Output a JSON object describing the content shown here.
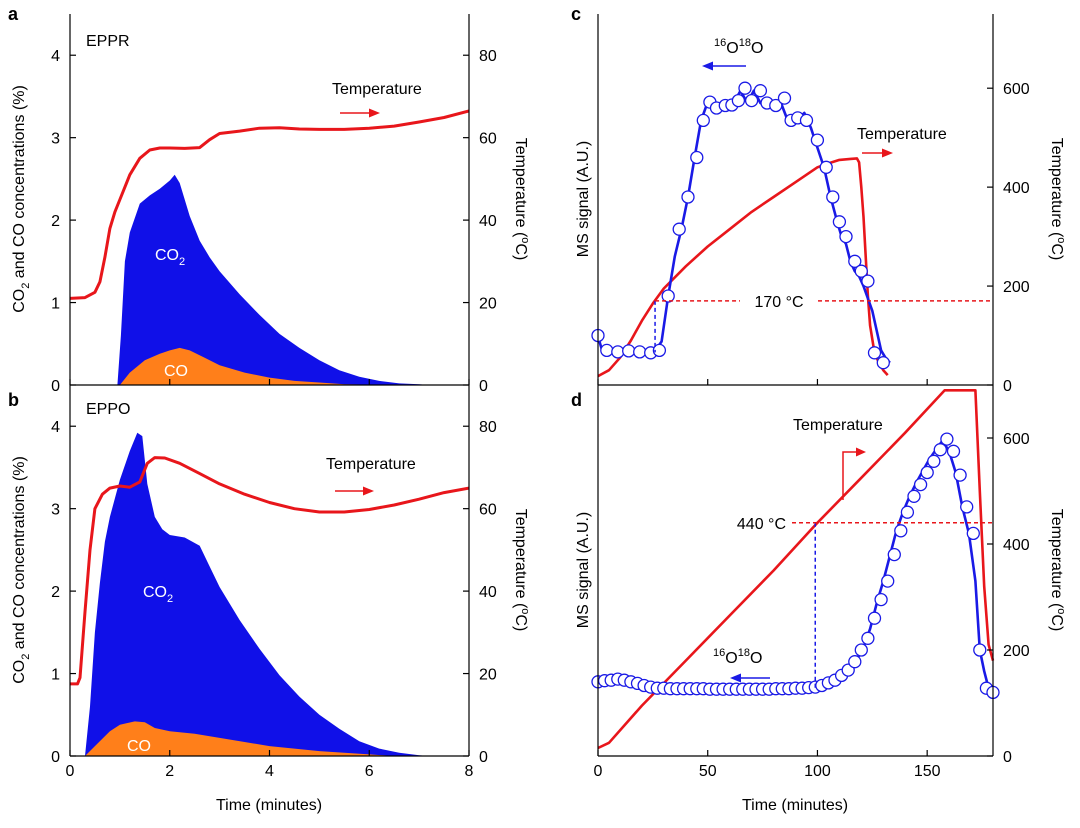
{
  "colors": {
    "co2_fill": "#1010e8",
    "co_fill": "#ff7f1a",
    "temperature": "#e8161b",
    "ms_signal": "#1a1ae6",
    "marker_fill": "#ffffff"
  },
  "chart_data": [
    {
      "panel": "a",
      "type": "area",
      "title": "",
      "sample_label": "EPPR",
      "xlabel": "",
      "ylabel": "CO2 and CO concentrations (%)",
      "ylabel_parts": {
        "pre": "CO",
        "sub": "2",
        "post": " and CO concentrations (%)"
      },
      "y2label": "Temperature (°C)",
      "y2label_parts": {
        "pre": "Temperature (",
        "sup": "o",
        "post": "C)"
      },
      "xlim": [
        0,
        8
      ],
      "ylim": [
        0,
        4.5
      ],
      "y2lim": [
        0,
        90
      ],
      "xticks": [
        0,
        2,
        4,
        6,
        8
      ],
      "yticks": [
        0,
        1,
        2,
        3,
        4
      ],
      "y2ticks": [
        0,
        20,
        40,
        60,
        80
      ],
      "series": [
        {
          "name": "CO2",
          "label_parts": {
            "pre": "CO",
            "sub": "2"
          },
          "axis": "left",
          "kind": "area",
          "x": [
            0.0,
            0.95,
            1.02,
            1.1,
            1.2,
            1.4,
            1.6,
            1.8,
            2.0,
            2.1,
            2.2,
            2.4,
            2.6,
            2.8,
            3.0,
            3.4,
            3.8,
            4.2,
            4.6,
            5.0,
            5.4,
            5.8,
            6.2,
            6.6,
            7.0,
            7.2,
            8.0
          ],
          "y": [
            0,
            0,
            0.6,
            1.5,
            1.85,
            2.2,
            2.3,
            2.38,
            2.48,
            2.55,
            2.45,
            2.05,
            1.75,
            1.55,
            1.38,
            1.1,
            0.85,
            0.62,
            0.45,
            0.3,
            0.18,
            0.1,
            0.05,
            0.02,
            0.01,
            0,
            0
          ]
        },
        {
          "name": "CO",
          "label_parts": {
            "pre": "CO",
            "sub": ""
          },
          "axis": "left",
          "kind": "area",
          "x": [
            0.0,
            1.0,
            1.2,
            1.5,
            1.8,
            2.0,
            2.2,
            2.4,
            2.7,
            3.0,
            3.5,
            4.0,
            4.5,
            5.0,
            5.5,
            6.0,
            6.5,
            8.0
          ],
          "y": [
            0,
            0,
            0.15,
            0.3,
            0.38,
            0.42,
            0.45,
            0.42,
            0.33,
            0.24,
            0.15,
            0.09,
            0.05,
            0.03,
            0.01,
            0.005,
            0,
            0
          ]
        },
        {
          "name": "Temperature",
          "axis": "right",
          "kind": "line",
          "x": [
            0.0,
            0.3,
            0.5,
            0.6,
            0.7,
            0.8,
            0.9,
            1.0,
            1.2,
            1.4,
            1.6,
            1.8,
            2.0,
            2.3,
            2.6,
            2.8,
            3.0,
            3.4,
            3.8,
            4.2,
            4.6,
            5.0,
            5.5,
            6.0,
            6.5,
            7.0,
            7.5,
            8.0
          ],
          "y": [
            21,
            21.2,
            22.5,
            25,
            31,
            38,
            42,
            45,
            51,
            55,
            57,
            57.5,
            57.5,
            57.4,
            57.6,
            59.5,
            61,
            61.6,
            62.3,
            62.4,
            62.1,
            62,
            62,
            62.3,
            62.8,
            63.8,
            64.9,
            66.5
          ]
        }
      ],
      "annotations": [
        {
          "text": "Temperature",
          "arrow": "right"
        }
      ]
    },
    {
      "panel": "b",
      "type": "area",
      "title": "",
      "sample_label": "EPPO",
      "xlabel": "Time (minutes)",
      "ylabel": "CO2 and CO concentrations (%)",
      "ylabel_parts": {
        "pre": "CO",
        "sub": "2",
        "post": " and CO concentrations (%)"
      },
      "y2label": "Temperature (°C)",
      "y2label_parts": {
        "pre": "Temperature (",
        "sup": "o",
        "post": "C)"
      },
      "xlim": [
        0,
        8
      ],
      "ylim": [
        0,
        4.5
      ],
      "y2lim": [
        0,
        90
      ],
      "xticks": [
        0,
        2,
        4,
        6,
        8
      ],
      "xticklabels": [
        "0",
        "2",
        "4",
        "6",
        "8"
      ],
      "yticks": [
        0,
        1,
        2,
        3,
        4
      ],
      "y2ticks": [
        0,
        20,
        40,
        60,
        80
      ],
      "series": [
        {
          "name": "CO2",
          "label_parts": {
            "pre": "CO",
            "sub": "2"
          },
          "axis": "left",
          "kind": "area",
          "x": [
            0.0,
            0.3,
            0.4,
            0.5,
            0.6,
            0.7,
            0.8,
            1.0,
            1.2,
            1.35,
            1.45,
            1.55,
            1.7,
            1.85,
            2.0,
            2.3,
            2.6,
            2.8,
            3.0,
            3.4,
            3.8,
            4.2,
            4.6,
            5.0,
            5.4,
            5.8,
            6.2,
            6.6,
            7.0,
            7.2,
            8.0
          ],
          "y": [
            0,
            0,
            0.6,
            1.5,
            2.1,
            2.6,
            2.9,
            3.35,
            3.7,
            3.92,
            3.88,
            3.3,
            2.9,
            2.75,
            2.68,
            2.65,
            2.55,
            2.3,
            2.05,
            1.65,
            1.3,
            0.98,
            0.72,
            0.5,
            0.33,
            0.18,
            0.09,
            0.04,
            0.01,
            0,
            0
          ]
        },
        {
          "name": "CO",
          "label_parts": {
            "pre": "CO",
            "sub": ""
          },
          "axis": "left",
          "kind": "area",
          "x": [
            0.0,
            0.3,
            0.5,
            0.8,
            1.0,
            1.3,
            1.5,
            1.7,
            2.0,
            2.5,
            3.0,
            3.5,
            4.0,
            5.0,
            6.0,
            6.5,
            8.0
          ],
          "y": [
            0,
            0,
            0.12,
            0.3,
            0.38,
            0.42,
            0.41,
            0.34,
            0.3,
            0.27,
            0.22,
            0.17,
            0.12,
            0.06,
            0.02,
            0,
            0
          ]
        },
        {
          "name": "Temperature",
          "axis": "right",
          "kind": "line",
          "x": [
            0.0,
            0.15,
            0.2,
            0.3,
            0.4,
            0.5,
            0.65,
            0.8,
            1.0,
            1.2,
            1.4,
            1.55,
            1.7,
            1.9,
            2.2,
            2.6,
            3.0,
            3.5,
            4.0,
            4.5,
            5.0,
            5.5,
            6.0,
            6.5,
            7.0,
            7.5,
            8.0
          ],
          "y": [
            17.5,
            17.5,
            19,
            35,
            50,
            60,
            63.5,
            65,
            65.5,
            65.2,
            66.5,
            71,
            72.4,
            72.3,
            71,
            68.5,
            66,
            63.5,
            61.5,
            60,
            59.2,
            59.2,
            59.8,
            60.9,
            62.3,
            63.9,
            65
          ]
        }
      ],
      "annotations": [
        {
          "text": "Temperature",
          "arrow": "right"
        }
      ]
    },
    {
      "panel": "c",
      "type": "line",
      "title": "",
      "xlabel": "",
      "ylabel": "MS signal (A.U.)",
      "y2label": "Temperature (°C)",
      "y2label_parts": {
        "pre": "Temperature (",
        "sup": "o",
        "post": "C)"
      },
      "xlim": [
        0,
        180
      ],
      "y2lim": [
        0,
        750
      ],
      "xticks": [
        0,
        50,
        100,
        150
      ],
      "y2ticks": [
        0,
        200,
        400,
        600
      ],
      "series": [
        {
          "name": "16O18O",
          "label_parts": {
            "sup1": "16",
            "b1": "O",
            "sup2": "18",
            "b2": "O"
          },
          "axis": "left",
          "kind": "line+markers",
          "x": [
            0,
            2,
            5,
            8,
            12,
            16,
            20,
            24,
            26,
            29,
            32,
            35,
            38,
            41,
            44,
            47,
            50,
            53,
            56,
            59,
            62,
            65,
            68,
            71,
            74,
            77,
            80,
            83,
            86,
            88,
            91,
            94,
            97,
            100,
            103,
            106,
            109,
            111,
            113,
            115,
            117,
            119,
            121,
            123,
            125,
            127,
            129,
            131,
            133
          ],
          "y": [
            98,
            68,
            66,
            67,
            70,
            69,
            66,
            66,
            69,
            88,
            180,
            260,
            315,
            380,
            460,
            535,
            572,
            565,
            565,
            567,
            572,
            595,
            570,
            595,
            570,
            565,
            565,
            575,
            540,
            540,
            538,
            550,
            520,
            480,
            440,
            380,
            330,
            300,
            285,
            250,
            230,
            220,
            200,
            175,
            150,
            110,
            70,
            55,
            45
          ],
          "markers_x": [
            0,
            4,
            9,
            14,
            19,
            24,
            28,
            32,
            37,
            41,
            45,
            48,
            51,
            54,
            58,
            61,
            64,
            67,
            70,
            74,
            77,
            81,
            85,
            88,
            91,
            95,
            100,
            104,
            107,
            110,
            113,
            117,
            120,
            123,
            126,
            130
          ],
          "markers_y": [
            100,
            70,
            67,
            69,
            67,
            65,
            70,
            180,
            315,
            380,
            460,
            535,
            572,
            560,
            565,
            566,
            575,
            600,
            575,
            595,
            570,
            565,
            580,
            535,
            540,
            535,
            495,
            440,
            380,
            330,
            300,
            250,
            230,
            210,
            65,
            45
          ]
        },
        {
          "name": "Temperature",
          "axis": "right",
          "kind": "line",
          "x": [
            0,
            5,
            10,
            15,
            20,
            25,
            30,
            40,
            50,
            60,
            70,
            80,
            90,
            100,
            105,
            110,
            115,
            118,
            119,
            120,
            121,
            122,
            123,
            124,
            126,
            128,
            130,
            132
          ],
          "y": [
            18,
            30,
            55,
            90,
            130,
            165,
            195,
            240,
            280,
            315,
            350,
            380,
            410,
            440,
            448,
            455,
            457,
            458,
            450,
            400,
            340,
            260,
            180,
            120,
            65,
            45,
            30,
            20
          ]
        }
      ],
      "reference": {
        "temperature": 170,
        "label": "170 °C",
        "x": 26
      },
      "annotations": [
        {
          "text": "Temperature",
          "arrow": "right"
        },
        {
          "text": "16O18O",
          "arrow": "left"
        }
      ]
    },
    {
      "panel": "d",
      "type": "line",
      "title": "",
      "xlabel": "Time (minutes)",
      "ylabel": "MS signal (A.U.)",
      "y2label": "Temperature (°C)",
      "y2label_parts": {
        "pre": "Temperature (",
        "sup": "o",
        "post": "C)"
      },
      "xlim": [
        0,
        180
      ],
      "y2lim": [
        0,
        700
      ],
      "xticks": [
        0,
        50,
        100,
        150
      ],
      "xticklabels": [
        "0",
        "50",
        "100",
        "150"
      ],
      "y2ticks": [
        0,
        200,
        400,
        600
      ],
      "series": [
        {
          "name": "16O18O",
          "label_parts": {
            "sup1": "16",
            "b1": "O",
            "sup2": "18",
            "b2": "O"
          },
          "axis": "left",
          "kind": "line+markers",
          "x": [
            0,
            3,
            6,
            9,
            12,
            15,
            18,
            21,
            24,
            27,
            30,
            35,
            40,
            45,
            50,
            55,
            60,
            65,
            70,
            75,
            80,
            85,
            90,
            95,
            100,
            103,
            106,
            109,
            112,
            115,
            118,
            121,
            124,
            127,
            130,
            133,
            136,
            139,
            142,
            145,
            148,
            151,
            154,
            157,
            160,
            163,
            166,
            169,
            172,
            174,
            176,
            178,
            180
          ],
          "y": [
            140,
            142,
            143,
            145,
            143,
            140,
            137,
            133,
            130,
            128,
            128,
            127,
            127,
            127,
            126,
            126,
            126,
            126,
            126,
            126,
            126,
            126,
            127,
            127,
            130,
            133,
            137,
            143,
            152,
            165,
            182,
            205,
            240,
            288,
            330,
            378,
            425,
            460,
            490,
            515,
            538,
            560,
            578,
            595,
            575,
            535,
            470,
            420,
            330,
            200,
            160,
            128,
            120
          ],
          "markers_x": [
            0,
            3,
            6,
            9,
            12,
            15,
            18,
            21,
            24,
            27,
            30,
            33,
            36,
            39,
            42,
            45,
            48,
            51,
            54,
            57,
            60,
            63,
            66,
            69,
            72,
            75,
            78,
            81,
            84,
            87,
            90,
            93,
            96,
            99,
            102,
            105,
            108,
            111,
            114,
            117,
            120,
            123,
            126,
            129,
            132,
            135,
            138,
            141,
            144,
            147,
            150,
            153,
            156,
            159,
            162,
            165,
            168,
            171,
            174,
            177,
            180
          ],
          "markers_y": [
            140,
            142,
            143,
            145,
            143,
            140,
            137,
            133,
            130,
            128,
            128,
            127,
            127,
            127,
            127,
            127,
            127,
            126,
            126,
            126,
            126,
            126,
            126,
            126,
            126,
            126,
            126,
            127,
            127,
            127,
            128,
            128,
            129,
            130,
            133,
            138,
            143,
            152,
            162,
            178,
            200,
            222,
            260,
            295,
            330,
            380,
            425,
            460,
            490,
            512,
            535,
            556,
            578,
            598,
            575,
            530,
            470,
            420,
            200,
            128,
            120
          ]
        },
        {
          "name": "Temperature",
          "axis": "right",
          "kind": "line",
          "x": [
            0,
            5,
            20,
            40,
            60,
            80,
            100,
            120,
            140,
            158,
            163,
            170,
            172,
            174,
            176,
            178,
            180
          ],
          "y": [
            15,
            25,
            95,
            180,
            265,
            350,
            440,
            525,
            610,
            690,
            690,
            690,
            690,
            500,
            320,
            210,
            180
          ]
        }
      ],
      "reference": {
        "temperature": 440,
        "label": "440 °C",
        "x": 99
      },
      "annotations": [
        {
          "text": "Temperature",
          "arrow": "bent"
        },
        {
          "text": "16O18O",
          "arrow": "left"
        }
      ]
    }
  ]
}
